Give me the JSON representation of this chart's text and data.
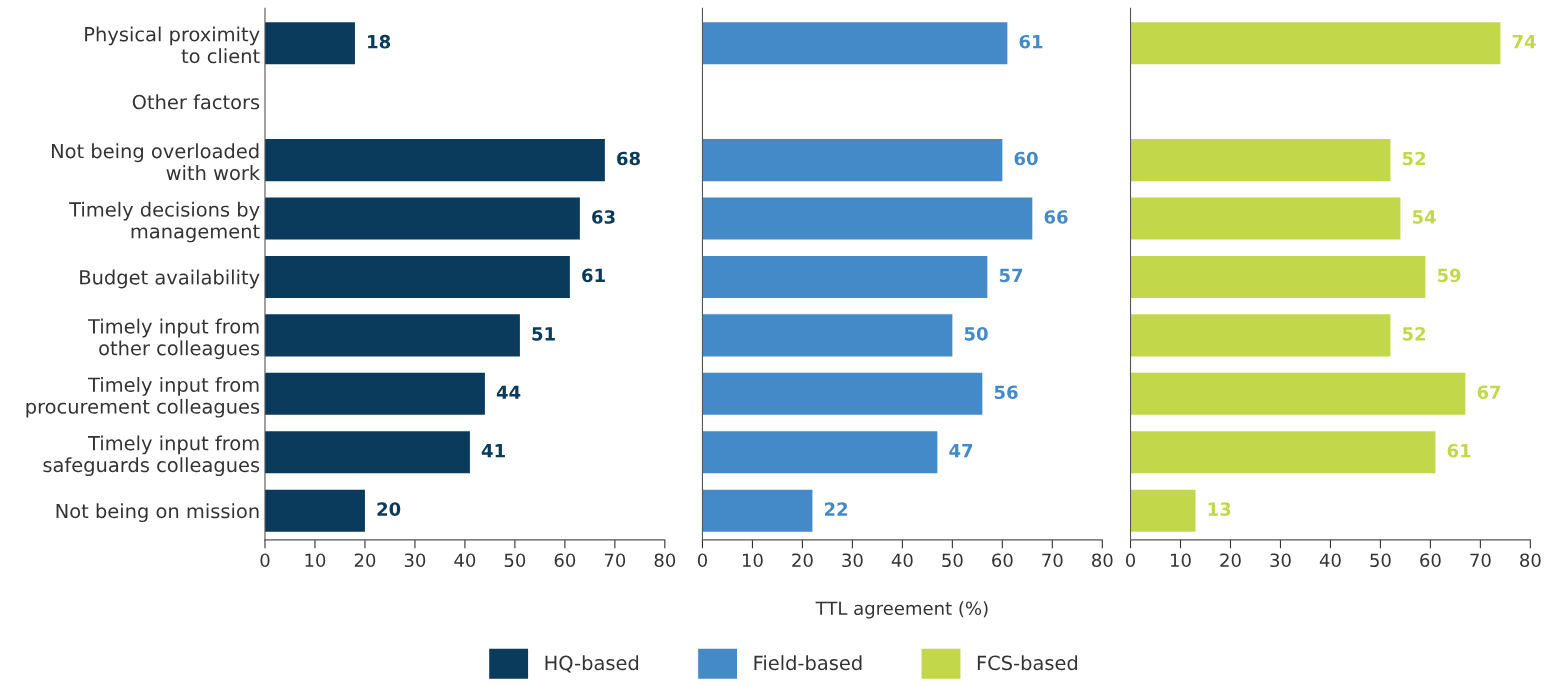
{
  "chart_data": [
    {
      "type": "bar",
      "orientation": "horizontal",
      "categories": [
        "Physical proximity\nto client",
        "Other factors",
        "Not being overloaded\nwith work",
        "Timely decisions by\nmanagement",
        "Budget availability",
        "Timely input from\nother colleagues",
        "Timely input from\nprocurement colleagues",
        "Timely input from\nsafeguards colleagues",
        "Not being on mission"
      ],
      "series": [
        {
          "name": "HQ-based",
          "color": "#0a3a5c",
          "values": [
            18,
            null,
            68,
            63,
            61,
            51,
            44,
            41,
            20
          ]
        }
      ],
      "xlim": [
        0,
        80
      ],
      "xticks": [
        0,
        10,
        20,
        30,
        40,
        50,
        60,
        70,
        80
      ],
      "data_labels": true,
      "grid": false,
      "legend": "bottom"
    },
    {
      "type": "bar",
      "orientation": "horizontal",
      "categories": [
        null,
        null,
        null,
        null,
        null,
        null,
        null,
        null,
        null
      ],
      "series": [
        {
          "name": "Field-based",
          "color": "#4489c8",
          "values": [
            61,
            null,
            60,
            66,
            57,
            50,
            56,
            47,
            22
          ]
        }
      ],
      "xlim": [
        0,
        80
      ],
      "xticks": [
        0,
        10,
        20,
        30,
        40,
        50,
        60,
        70,
        80
      ],
      "xlabel": "TTL agreement (%)",
      "data_labels": true,
      "grid": false,
      "legend": "bottom",
      "tick_labels": "x"
    },
    {
      "type": "bar",
      "orientation": "horizontal",
      "categories": [
        null,
        null,
        null,
        null,
        null,
        null,
        null,
        null,
        null
      ],
      "series": [
        {
          "name": "FCS-based",
          "color": "#c2d84a",
          "values": [
            74,
            null,
            52,
            54,
            59,
            52,
            67,
            61,
            13
          ]
        }
      ],
      "xlim": [
        0,
        80
      ],
      "xticks": [
        0,
        10,
        20,
        30,
        40,
        50,
        60,
        70,
        80
      ],
      "data_labels": true,
      "grid": false,
      "legend": "bottom",
      "tick_labels": "x"
    }
  ]
}
